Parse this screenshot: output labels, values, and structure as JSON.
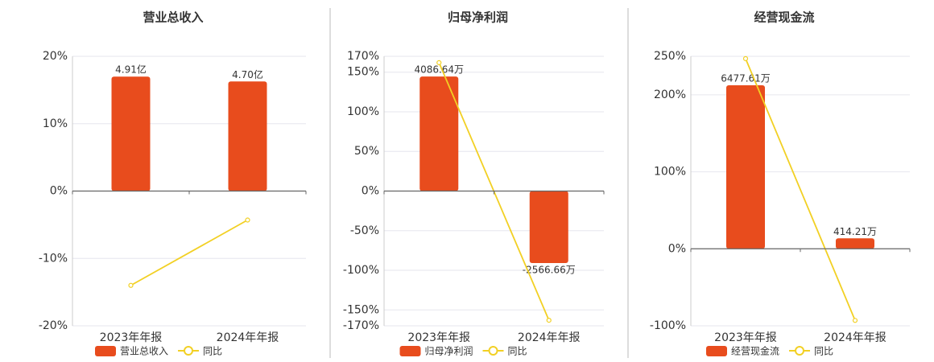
{
  "chart_data": [
    {
      "type": "bar",
      "title": "营业总收入",
      "categories": [
        "2023年年报",
        "2024年年报"
      ],
      "series": [
        {
          "name": "营业总收入",
          "color": "#e84c1d",
          "axis": "y2",
          "values": [
            4.91,
            4.7
          ],
          "value_labels": [
            "4.91亿",
            "4.70亿"
          ]
        },
        {
          "name": "同比",
          "color": "#f2d024",
          "type": "line",
          "values": [
            -14.0,
            -4.3
          ]
        }
      ],
      "ylim": [
        -20,
        20
      ],
      "yticks": [
        {
          "value": 20,
          "label": "20%"
        },
        {
          "value": 10,
          "label": "10%"
        },
        {
          "value": 0,
          "label": "0%"
        },
        {
          "value": -10,
          "label": "-10%"
        },
        {
          "value": -20,
          "label": "-20%"
        }
      ],
      "y2lim": [
        -5.78,
        5.78
      ],
      "grid": true
    },
    {
      "type": "bar",
      "title": "归母净利润",
      "categories": [
        "2023年年报",
        "2024年年报"
      ],
      "series": [
        {
          "name": "归母净利润",
          "color": "#e84c1d",
          "axis": "y2",
          "values": [
            4086.64,
            -2566.66
          ],
          "value_labels": [
            "4086.64万",
            "-2566.66万"
          ]
        },
        {
          "name": "同比",
          "color": "#f2d024",
          "type": "line",
          "values": [
            162,
            -163
          ]
        }
      ],
      "ylim": [
        -170,
        170
      ],
      "yticks": [
        {
          "value": 170,
          "label": "170%"
        },
        {
          "value": 150,
          "label": "150%"
        },
        {
          "value": 100,
          "label": "100%"
        },
        {
          "value": 50,
          "label": "50%"
        },
        {
          "value": 0,
          "label": "0%"
        },
        {
          "value": -50,
          "label": "-50%"
        },
        {
          "value": -100,
          "label": "-100%"
        },
        {
          "value": -150,
          "label": "-150%"
        },
        {
          "value": -170,
          "label": "-170%"
        }
      ],
      "y2lim": [
        -4806,
        4806
      ],
      "grid": true
    },
    {
      "type": "bar",
      "title": "经营现金流",
      "categories": [
        "2023年年报",
        "2024年年报"
      ],
      "series": [
        {
          "name": "经营现金流",
          "color": "#e84c1d",
          "axis": "y2",
          "values": [
            6477.61,
            414.21
          ],
          "value_labels": [
            "6477.61万",
            "414.21万"
          ]
        },
        {
          "name": "同比",
          "color": "#f2d024",
          "type": "line",
          "values": [
            247,
            -93
          ]
        }
      ],
      "ylim": [
        -100,
        250
      ],
      "yticks": [
        {
          "value": 250,
          "label": "250%"
        },
        {
          "value": 200,
          "label": "200%"
        },
        {
          "value": 100,
          "label": "100%"
        },
        {
          "value": 0,
          "label": "0%"
        },
        {
          "value": -100,
          "label": "-100%"
        }
      ],
      "y2lim": [
        -3050,
        7626
      ],
      "grid": true
    }
  ]
}
